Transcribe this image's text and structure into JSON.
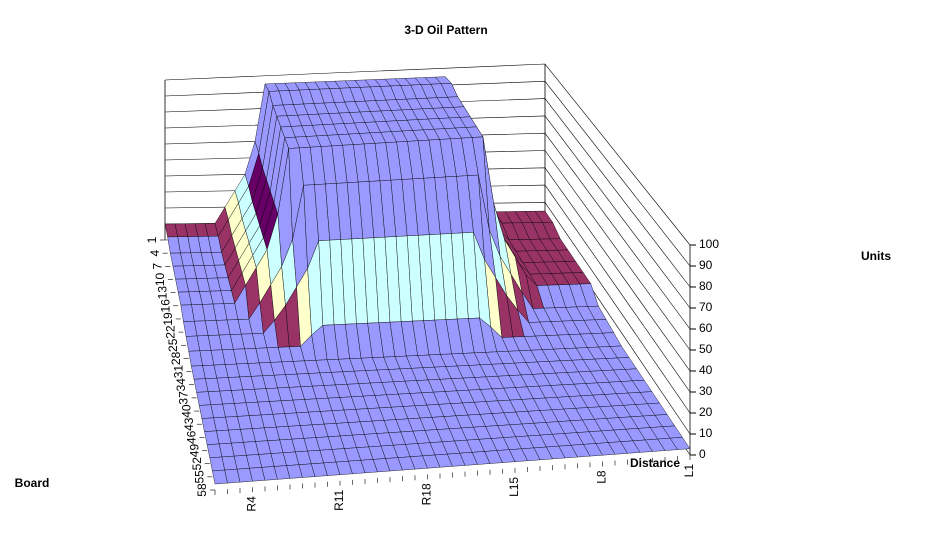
{
  "chart_data": {
    "type": "surface",
    "title": "3-D Oil Pattern",
    "x_label": "Distance",
    "y_label": "Board",
    "z_label": "Units",
    "categories": [
      null,
      null,
      null,
      "R4",
      null,
      null,
      null,
      null,
      null,
      null,
      "R11",
      null,
      null,
      null,
      null,
      null,
      null,
      "R18",
      null,
      null,
      null,
      null,
      null,
      null,
      "L15",
      null,
      null,
      null,
      null,
      null,
      null,
      "L8",
      null,
      null,
      null,
      null,
      null,
      null,
      "L1"
    ],
    "series": [
      {
        "name": "1",
        "values": [
          10,
          10,
          10,
          10,
          10,
          10,
          20,
          30,
          40,
          60,
          95,
          95,
          95,
          95,
          95,
          95,
          95,
          95,
          95,
          95,
          95,
          95,
          95,
          95,
          95,
          95,
          95,
          95,
          95,
          60,
          40,
          30,
          20,
          15,
          15,
          15,
          15,
          15,
          15
        ]
      },
      {
        "name": "4",
        "values": [
          10,
          10,
          10,
          10,
          10,
          10,
          20,
          30,
          40,
          60,
          97,
          97,
          97,
          97,
          97,
          97,
          97,
          97,
          97,
          97,
          97,
          97,
          97,
          97,
          97,
          97,
          97,
          97,
          97,
          60,
          40,
          30,
          20,
          15,
          15,
          15,
          15,
          15,
          15
        ]
      },
      {
        "name": "7",
        "values": [
          8,
          8,
          8,
          8,
          8,
          8,
          18,
          28,
          38,
          58,
          95,
          95,
          95,
          95,
          95,
          95,
          95,
          95,
          95,
          95,
          95,
          95,
          95,
          95,
          95,
          95,
          95,
          95,
          95,
          58,
          38,
          28,
          18,
          12,
          12,
          12,
          12,
          12,
          12
        ]
      },
      {
        "name": "10",
        "values": [
          8,
          8,
          8,
          8,
          8,
          8,
          18,
          28,
          38,
          58,
          95,
          95,
          95,
          95,
          95,
          95,
          95,
          95,
          95,
          95,
          95,
          95,
          95,
          95,
          95,
          95,
          95,
          95,
          95,
          58,
          38,
          28,
          18,
          12,
          12,
          12,
          12,
          12,
          12
        ]
      },
      {
        "name": "13",
        "values": [
          8,
          8,
          8,
          8,
          8,
          8,
          18,
          28,
          38,
          58,
          95,
          95,
          95,
          95,
          95,
          95,
          95,
          95,
          95,
          95,
          95,
          95,
          95,
          95,
          95,
          95,
          95,
          95,
          95,
          58,
          38,
          28,
          18,
          12,
          12,
          12,
          12,
          12,
          12
        ]
      },
      {
        "name": "16",
        "values": [
          8,
          8,
          8,
          8,
          8,
          8,
          18,
          28,
          38,
          58,
          95,
          95,
          95,
          95,
          95,
          95,
          95,
          95,
          95,
          95,
          95,
          95,
          95,
          95,
          95,
          95,
          95,
          95,
          95,
          58,
          38,
          28,
          18,
          12,
          12,
          12,
          12,
          12,
          12
        ]
      },
      {
        "name": "19",
        "values": [
          8,
          8,
          8,
          8,
          8,
          8,
          18,
          28,
          38,
          58,
          95,
          95,
          95,
          95,
          95,
          95,
          95,
          95,
          95,
          95,
          95,
          95,
          95,
          95,
          95,
          95,
          95,
          95,
          95,
          58,
          38,
          28,
          18,
          12,
          12,
          12,
          12,
          12,
          12
        ]
      },
      {
        "name": "22",
        "values": [
          6,
          6,
          6,
          6,
          6,
          6,
          6,
          15,
          25,
          35,
          50,
          80,
          80,
          80,
          80,
          80,
          80,
          80,
          80,
          80,
          80,
          80,
          80,
          80,
          80,
          80,
          80,
          80,
          50,
          35,
          25,
          15,
          6,
          6,
          6,
          6,
          6,
          6,
          6
        ]
      },
      {
        "name": "25",
        "values": [
          5,
          5,
          5,
          5,
          5,
          5,
          5,
          5,
          12,
          20,
          30,
          40,
          55,
          55,
          55,
          55,
          55,
          55,
          55,
          55,
          55,
          55,
          55,
          55,
          55,
          55,
          55,
          40,
          30,
          20,
          12,
          5,
          5,
          5,
          5,
          5,
          5,
          5,
          5
        ]
      },
      {
        "name": "28",
        "values": [
          4,
          4,
          4,
          4,
          4,
          4,
          4,
          4,
          4,
          4,
          4,
          10,
          15,
          15,
          15,
          15,
          15,
          15,
          15,
          15,
          15,
          15,
          15,
          15,
          15,
          15,
          15,
          10,
          4,
          4,
          4,
          4,
          4,
          4,
          4,
          4,
          4,
          4,
          4
        ]
      },
      {
        "name": "31",
        "values": [
          3,
          3,
          3,
          3,
          3,
          3,
          3,
          3,
          3,
          3,
          3,
          3,
          3,
          3,
          3,
          3,
          3,
          3,
          3,
          3,
          3,
          3,
          3,
          3,
          3,
          3,
          3,
          3,
          3,
          3,
          3,
          3,
          3,
          3,
          3,
          3,
          3,
          3,
          3
        ]
      },
      {
        "name": "34",
        "values": [
          3,
          3,
          3,
          3,
          3,
          3,
          3,
          3,
          3,
          3,
          3,
          3,
          3,
          3,
          3,
          3,
          3,
          3,
          3,
          3,
          3,
          3,
          3,
          3,
          3,
          3,
          3,
          3,
          3,
          3,
          3,
          3,
          3,
          3,
          3,
          3,
          3,
          3,
          3
        ]
      },
      {
        "name": "37",
        "values": [
          3,
          3,
          3,
          3,
          3,
          3,
          3,
          3,
          3,
          3,
          3,
          3,
          3,
          3,
          3,
          3,
          3,
          3,
          3,
          3,
          3,
          3,
          3,
          3,
          3,
          3,
          3,
          3,
          3,
          3,
          3,
          3,
          3,
          3,
          3,
          3,
          3,
          3,
          3
        ]
      },
      {
        "name": "40",
        "values": [
          3,
          3,
          3,
          3,
          3,
          3,
          3,
          3,
          3,
          3,
          3,
          3,
          3,
          3,
          3,
          3,
          3,
          3,
          3,
          3,
          3,
          3,
          3,
          3,
          3,
          3,
          3,
          3,
          3,
          3,
          3,
          3,
          3,
          3,
          3,
          3,
          3,
          3,
          3
        ]
      },
      {
        "name": "43",
        "values": [
          3,
          3,
          3,
          3,
          3,
          3,
          3,
          3,
          3,
          3,
          3,
          3,
          3,
          3,
          3,
          3,
          3,
          3,
          3,
          3,
          3,
          3,
          3,
          3,
          3,
          3,
          3,
          3,
          3,
          3,
          3,
          3,
          3,
          3,
          3,
          3,
          3,
          3,
          3
        ]
      },
      {
        "name": "46",
        "values": [
          3,
          3,
          3,
          3,
          3,
          3,
          3,
          3,
          3,
          3,
          3,
          3,
          3,
          3,
          3,
          3,
          3,
          3,
          3,
          3,
          3,
          3,
          3,
          3,
          3,
          3,
          3,
          3,
          3,
          3,
          3,
          3,
          3,
          3,
          3,
          3,
          3,
          3,
          3
        ]
      },
      {
        "name": "49",
        "values": [
          3,
          3,
          3,
          3,
          3,
          3,
          3,
          3,
          3,
          3,
          3,
          3,
          3,
          3,
          3,
          3,
          3,
          3,
          3,
          3,
          3,
          3,
          3,
          3,
          3,
          3,
          3,
          3,
          3,
          3,
          3,
          3,
          3,
          3,
          3,
          3,
          3,
          3,
          3
        ]
      },
      {
        "name": "52",
        "values": [
          3,
          3,
          3,
          3,
          3,
          3,
          3,
          3,
          3,
          3,
          3,
          3,
          3,
          3,
          3,
          3,
          3,
          3,
          3,
          3,
          3,
          3,
          3,
          3,
          3,
          3,
          3,
          3,
          3,
          3,
          3,
          3,
          3,
          3,
          3,
          3,
          3,
          3,
          3
        ]
      },
      {
        "name": "55",
        "values": [
          3,
          3,
          3,
          3,
          3,
          3,
          3,
          3,
          3,
          3,
          3,
          3,
          3,
          3,
          3,
          3,
          3,
          3,
          3,
          3,
          3,
          3,
          3,
          3,
          3,
          3,
          3,
          3,
          3,
          3,
          3,
          3,
          3,
          3,
          3,
          3,
          3,
          3,
          3
        ]
      },
      {
        "name": "58",
        "values": [
          3,
          3,
          3,
          3,
          3,
          3,
          3,
          3,
          3,
          3,
          3,
          3,
          3,
          3,
          3,
          3,
          3,
          3,
          3,
          3,
          3,
          3,
          3,
          3,
          3,
          3,
          3,
          3,
          3,
          3,
          3,
          3,
          3,
          3,
          3,
          3,
          3,
          3,
          3
        ]
      }
    ],
    "zlim": [
      0,
      100
    ],
    "zticks": [
      0,
      10,
      20,
      30,
      40,
      50,
      60,
      70,
      80,
      90,
      100
    ],
    "band_colors": [
      "#9999ff",
      "#993366",
      "#ffffcc",
      "#ccffff",
      "#660066",
      "#9999ff",
      "#9999ff",
      "#9999ff",
      "#9999ff",
      "#9999ff"
    ],
    "grid": true
  }
}
